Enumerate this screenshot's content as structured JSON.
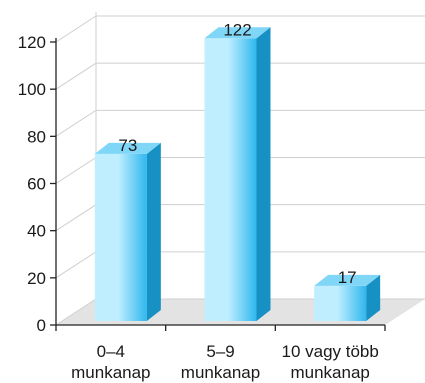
{
  "chart_data": {
    "type": "bar",
    "title": "",
    "xlabel": "",
    "ylabel": "",
    "categories": [
      [
        "0–4",
        "munkanap"
      ],
      [
        "5–9",
        "munkanap"
      ],
      [
        "10 vagy több",
        "munkanap"
      ]
    ],
    "values": [
      73,
      122,
      17
    ],
    "data_labels": [
      "73",
      "122",
      "17"
    ],
    "ylim": [
      0,
      120
    ],
    "yticks": [
      0,
      20,
      40,
      60,
      80,
      100,
      120
    ],
    "grid": true,
    "legend": "none",
    "style": "3d",
    "colors": {
      "bar_front_light": "#bfeeff",
      "bar_front_dark": "#2fb7ee",
      "bar_side": "#1790c4",
      "bar_top": "#7fd6f7",
      "grid": "#cfcfcf",
      "floor": "#e3e3e3",
      "axis": "#222222"
    }
  }
}
